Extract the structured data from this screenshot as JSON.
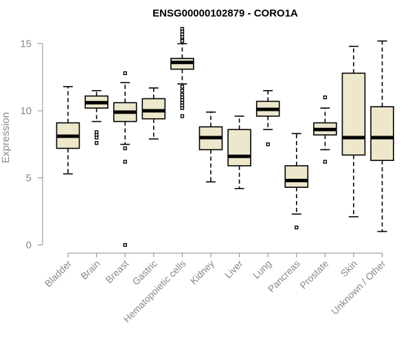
{
  "chart_data": {
    "type": "boxplot",
    "title": "ENSG00000102879 - CORO1A",
    "xlabel": "",
    "ylabel": "Expression",
    "ylim": [
      0,
      15.5
    ],
    "yticks": [
      0,
      5,
      10,
      15
    ],
    "box_fill": "#ede7cc",
    "categories": [
      "Bladder",
      "Brain",
      "Breast",
      "Gastric",
      "Hematopoietic cells",
      "Kidney",
      "Liver",
      "Lung",
      "Pancreas",
      "Prostate",
      "Skin",
      "Unknown / Other"
    ],
    "boxes": [
      {
        "category": "Bladder",
        "whisker_low": 5.3,
        "q1": 7.2,
        "median": 8.1,
        "q3": 9.1,
        "whisker_high": 11.8,
        "outliers": []
      },
      {
        "category": "Brain",
        "whisker_low": 9.2,
        "q1": 10.2,
        "median": 10.6,
        "q3": 11.1,
        "whisker_high": 11.5,
        "outliers": [
          8.4,
          8.2,
          8.0,
          7.6
        ]
      },
      {
        "category": "Breast",
        "whisker_low": 7.5,
        "q1": 9.2,
        "median": 9.9,
        "q3": 10.6,
        "whisker_high": 12.1,
        "outliers": [
          12.8,
          7.2,
          6.2,
          0.0
        ]
      },
      {
        "category": "Gastric",
        "whisker_low": 7.9,
        "q1": 9.4,
        "median": 10.0,
        "q3": 10.9,
        "whisker_high": 11.7,
        "outliers": []
      },
      {
        "category": "Hematopoietic cells",
        "whisker_low": 12.0,
        "q1": 13.1,
        "median": 13.6,
        "q3": 13.9,
        "whisker_high": 15.0,
        "outliers": [
          16.1,
          15.9,
          15.7,
          15.5,
          15.3,
          15.2,
          11.8,
          11.5,
          11.2,
          11.0,
          10.8,
          10.6,
          10.4,
          10.2,
          9.6
        ]
      },
      {
        "category": "Kidney",
        "whisker_low": 4.7,
        "q1": 7.1,
        "median": 8.0,
        "q3": 8.8,
        "whisker_high": 9.9,
        "outliers": []
      },
      {
        "category": "Liver",
        "whisker_low": 4.2,
        "q1": 5.9,
        "median": 6.6,
        "q3": 8.6,
        "whisker_high": 9.6,
        "outliers": []
      },
      {
        "category": "Lung",
        "whisker_low": 8.6,
        "q1": 9.6,
        "median": 10.1,
        "q3": 10.7,
        "whisker_high": 11.5,
        "outliers": [
          7.5
        ]
      },
      {
        "category": "Pancreas",
        "whisker_low": 2.3,
        "q1": 4.3,
        "median": 4.8,
        "q3": 5.9,
        "whisker_high": 8.3,
        "outliers": [
          1.3
        ]
      },
      {
        "category": "Prostate",
        "whisker_low": 7.1,
        "q1": 8.2,
        "median": 8.6,
        "q3": 9.1,
        "whisker_high": 10.2,
        "outliers": [
          11.0,
          6.2
        ]
      },
      {
        "category": "Skin",
        "whisker_low": 2.1,
        "q1": 6.7,
        "median": 8.0,
        "q3": 12.8,
        "whisker_high": 14.8,
        "outliers": []
      },
      {
        "category": "Unknown / Other",
        "whisker_low": 1.0,
        "q1": 6.3,
        "median": 8.0,
        "q3": 10.3,
        "whisker_high": 15.2,
        "outliers": []
      }
    ]
  }
}
